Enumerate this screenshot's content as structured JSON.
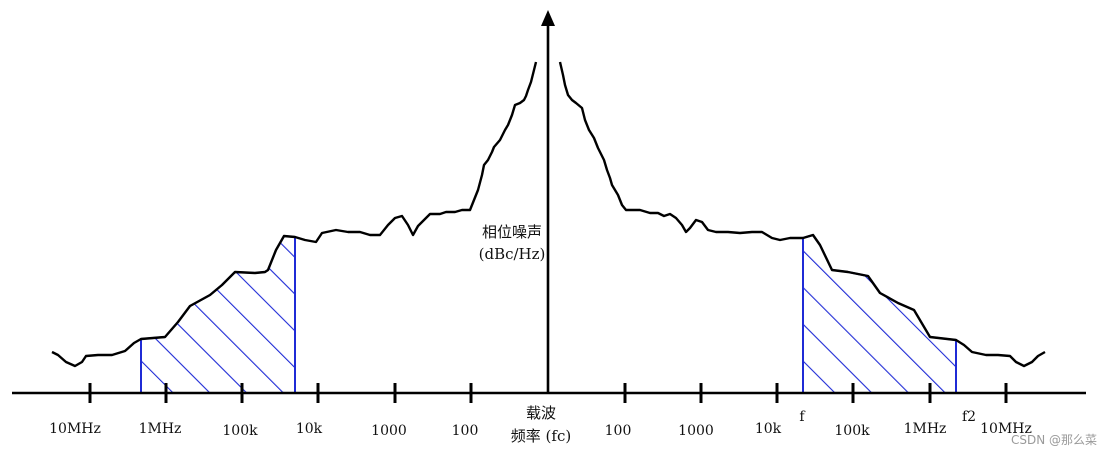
{
  "diagram": {
    "y_axis_label": "相位噪声",
    "y_axis_unit": "(dBc/Hz)",
    "center_label_line1": "载波",
    "center_label_line2": "频率 (fc)",
    "left_ticks": [
      "10MHz",
      "1MHz",
      "100k",
      "10k",
      "1000",
      "100"
    ],
    "right_ticks": [
      "100",
      "1000",
      "10k",
      "f",
      "100k",
      "1MHz",
      "f2",
      "10MHz"
    ],
    "colors": {
      "hatch": "#1f2bd6",
      "curve": "#000000",
      "axis": "#000000"
    }
  },
  "watermark": "CSDN @那么菜"
}
